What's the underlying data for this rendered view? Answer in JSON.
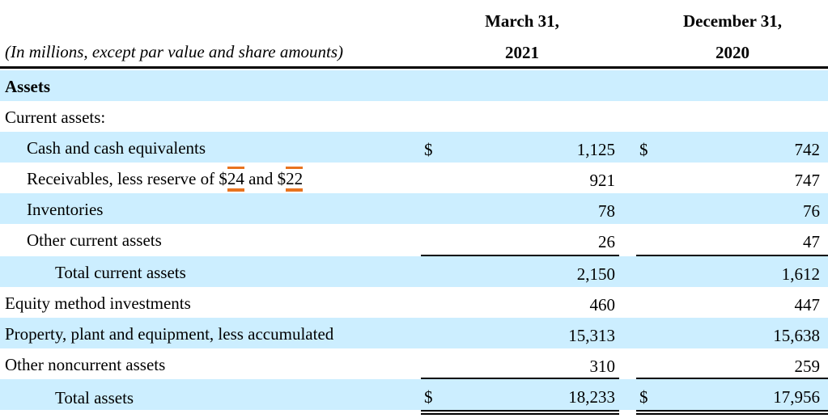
{
  "header": {
    "col1": {
      "line1": "March 31,",
      "line2": "2021"
    },
    "col2": {
      "line1": "December 31,",
      "line2": "2020"
    },
    "units_note": "(In millions, except par value and share amounts)"
  },
  "receivables_parts": {
    "prefix": "Receivables, less reserve of $",
    "reserve1": "24",
    "middle": " and $",
    "reserve2": "22"
  },
  "rows": [
    {
      "label": "Assets",
      "c1": "",
      "c2": ""
    },
    {
      "label": "Current assets:",
      "c1": "",
      "c2": ""
    },
    {
      "label": "Cash and cash equivalents",
      "d1": "$",
      "c1": "1,125",
      "d2": "$",
      "c2": "742"
    },
    {
      "label": "Receivables, less reserve of $24 and $22",
      "c1": "921",
      "c2": "747"
    },
    {
      "label": "Inventories",
      "c1": "78",
      "c2": "76"
    },
    {
      "label": "Other current assets",
      "c1": "26",
      "c2": "47"
    },
    {
      "label": "Total current assets",
      "c1": "2,150",
      "c2": "1,612"
    },
    {
      "label": "Equity method investments",
      "c1": "460",
      "c2": "447"
    },
    {
      "label": "Property, plant and equipment, less accumulated",
      "c1": "15,313",
      "c2": "15,638"
    },
    {
      "label": "Other noncurrent assets",
      "c1": "310",
      "c2": "259"
    },
    {
      "label": "Total assets",
      "d1": "$",
      "c1": "18,233",
      "d2": "$",
      "c2": "17,956"
    }
  ]
}
